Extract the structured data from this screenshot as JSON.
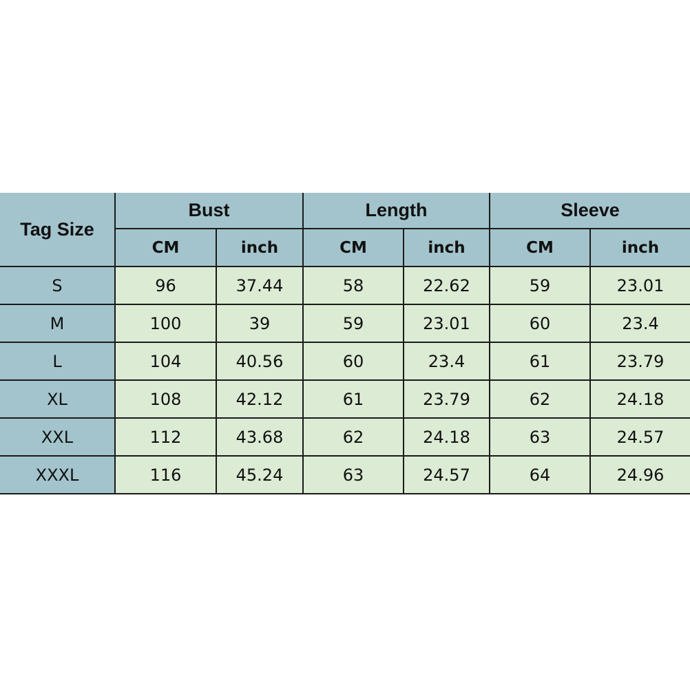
{
  "header": {
    "tag_size": "Tag Size",
    "groups": [
      "Bust",
      "Length",
      "Sleeve"
    ],
    "units": [
      "CM",
      "inch",
      "CM",
      "inch",
      "CM",
      "inch"
    ]
  },
  "rows": [
    {
      "size": "S",
      "values": [
        "96",
        "37.44",
        "58",
        "22.62",
        "59",
        "23.01"
      ]
    },
    {
      "size": "M",
      "values": [
        "100",
        "39",
        "59",
        "23.01",
        "60",
        "23.4"
      ]
    },
    {
      "size": "L",
      "values": [
        "104",
        "40.56",
        "60",
        "23.4",
        "61",
        "23.79"
      ]
    },
    {
      "size": "XL",
      "values": [
        "108",
        "42.12",
        "61",
        "23.79",
        "62",
        "24.18"
      ]
    },
    {
      "size": "XXL",
      "values": [
        "112",
        "43.68",
        "62",
        "24.18",
        "63",
        "24.57"
      ]
    },
    {
      "size": "XXXL",
      "values": [
        "116",
        "45.24",
        "63",
        "24.57",
        "64",
        "24.96"
      ]
    }
  ],
  "colors": {
    "header_bg": "#a3c4cc",
    "cell_bg": "#dcebd4",
    "border": "#1a1a1a"
  }
}
